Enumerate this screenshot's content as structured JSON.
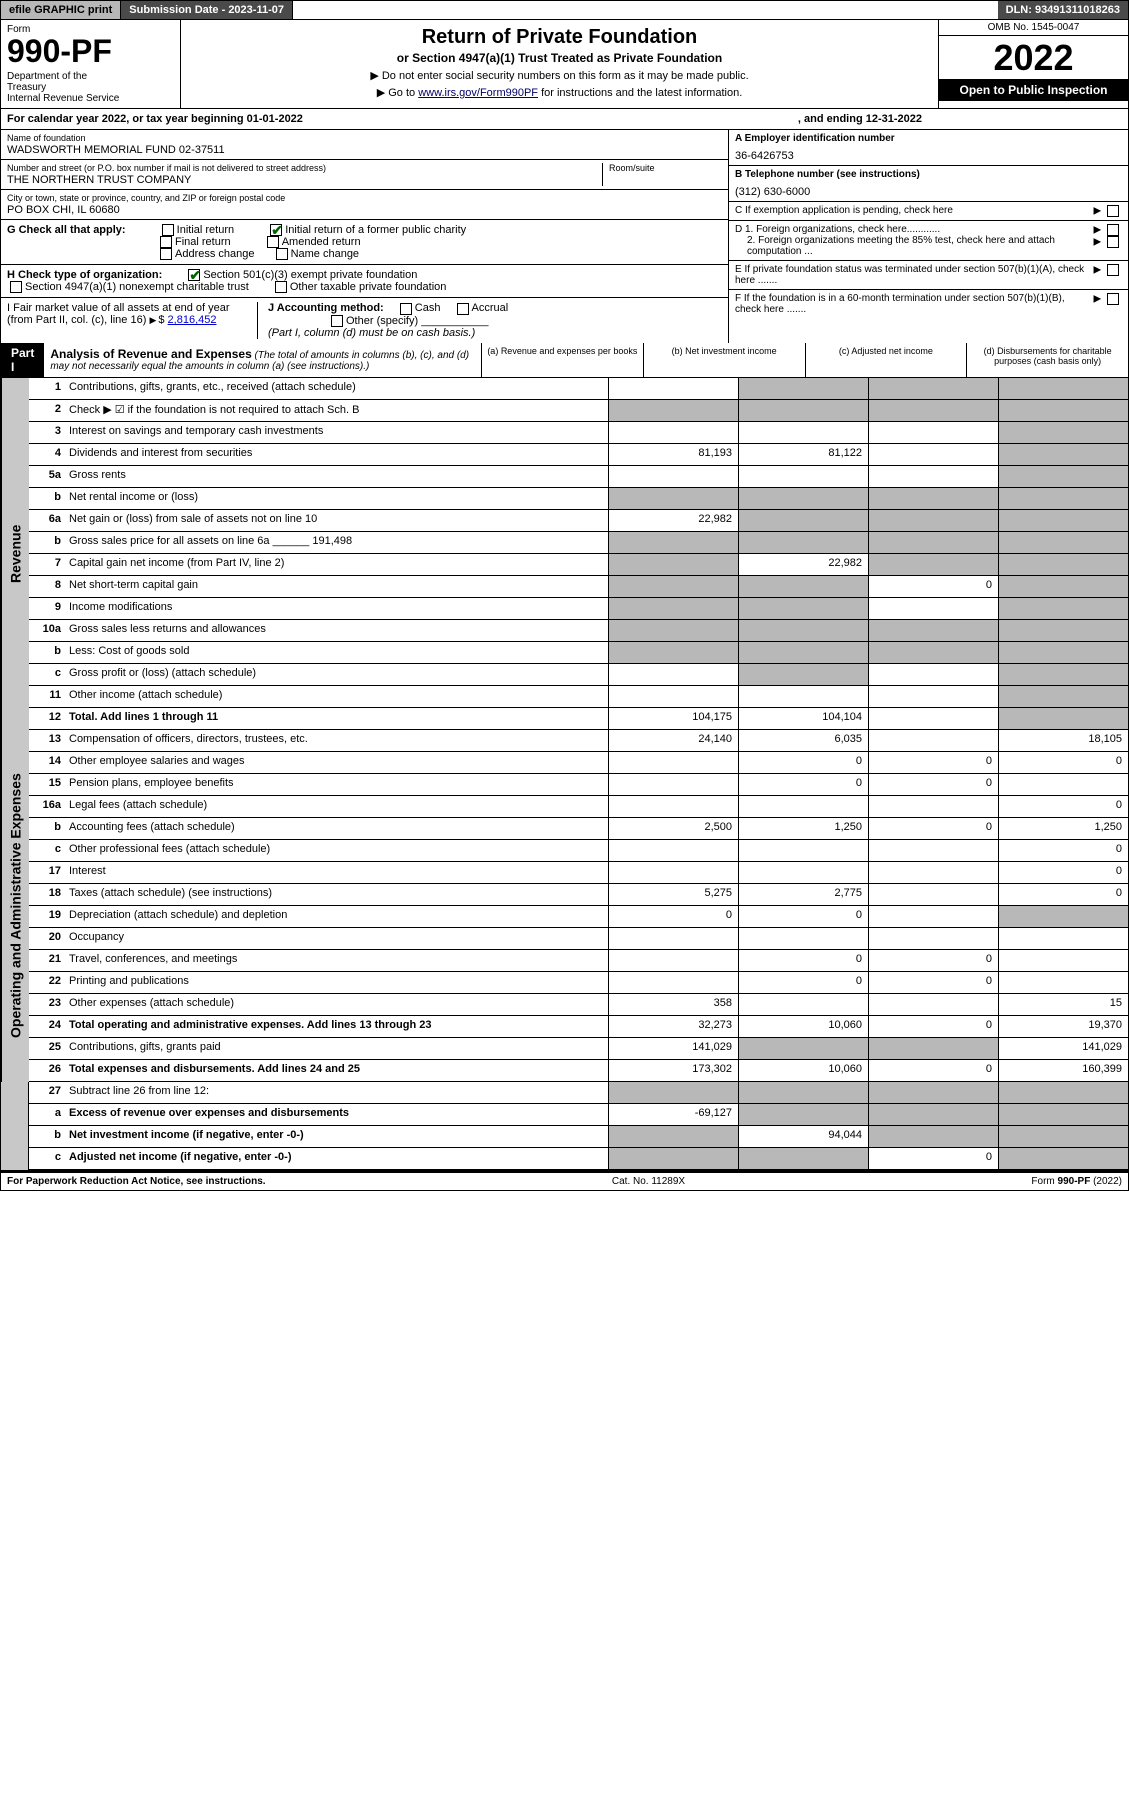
{
  "topbar": {
    "efile": "efile GRAPHIC print",
    "subdate_label": "Submission Date - 2023-11-07",
    "dln": "DLN: 93491311018263"
  },
  "header": {
    "form_label": "Form",
    "form_number": "990-PF",
    "dept": "Department of the Treasury\nInternal Revenue Service",
    "title": "Return of Private Foundation",
    "subtitle": "or Section 4947(a)(1) Trust Treated as Private Foundation",
    "note1": "▶ Do not enter social security numbers on this form as it may be made public.",
    "note2_pre": "▶ Go to ",
    "note2_link": "www.irs.gov/Form990PF",
    "note2_post": " for instructions and the latest information.",
    "omb": "OMB No. 1545-0047",
    "year": "2022",
    "open": "Open to Public Inspection"
  },
  "calyear": {
    "text1": "For calendar year 2022, or tax year beginning 01-01-2022",
    "text2": ", and ending 12-31-2022"
  },
  "left": {
    "name_label": "Name of foundation",
    "name": "WADSWORTH MEMORIAL FUND 02-37511",
    "addr_label": "Number and street (or P.O. box number if mail is not delivered to street address)",
    "addr": "THE NORTHERN TRUST COMPANY",
    "room_label": "Room/suite",
    "city_label": "City or town, state or province, country, and ZIP or foreign postal code",
    "city": "PO BOX CHI, IL  60680"
  },
  "right": {
    "a_label": "A Employer identification number",
    "a_value": "36-6426753",
    "b_label": "B Telephone number (see instructions)",
    "b_value": "(312) 630-6000",
    "c_label": "C If exemption application is pending, check here",
    "d1": "D 1. Foreign organizations, check here............",
    "d2": "2. Foreign organizations meeting the 85% test, check here and attach computation ...",
    "e": "E If private foundation status was terminated under section 507(b)(1)(A), check here .......",
    "f": "F If the foundation is in a 60-month termination under section 507(b)(1)(B), check here ......."
  },
  "g": {
    "label": "G Check all that apply:",
    "initial": "Initial return",
    "initial_former": "Initial return of a former public charity",
    "final": "Final return",
    "amended": "Amended return",
    "addr_change": "Address change",
    "name_change": "Name change"
  },
  "h": {
    "label": "H Check type of organization:",
    "c3": "Section 501(c)(3) exempt private foundation",
    "trust": "Section 4947(a)(1) nonexempt charitable trust",
    "other_taxable": "Other taxable private foundation"
  },
  "i": {
    "label": "I Fair market value of all assets at end of year (from Part II, col. (c), line 16)",
    "value": "2,816,452"
  },
  "j": {
    "label": "J Accounting method:",
    "cash": "Cash",
    "accrual": "Accrual",
    "other": "Other (specify)",
    "note": "(Part I, column (d) must be on cash basis.)"
  },
  "part1": {
    "label": "Part I",
    "title": "Analysis of Revenue and Expenses",
    "subtitle": "(The total of amounts in columns (b), (c), and (d) may not necessarily equal the amounts in column (a) (see instructions).)",
    "col_a": "(a) Revenue and expenses per books",
    "col_b": "(b) Net investment income",
    "col_c": "(c) Adjusted net income",
    "col_d": "(d) Disbursements for charitable purposes (cash basis only)"
  },
  "revenue_label": "Revenue",
  "expenses_label": "Operating and Administrative Expenses",
  "rows": [
    {
      "n": "1",
      "l": "Contributions, gifts, grants, etc., received (attach schedule)",
      "a": "",
      "b": "",
      "c": "",
      "d": "",
      "sa": false,
      "sb": true,
      "sc": true,
      "sd": true
    },
    {
      "n": "2",
      "l": "Check ▶ ☑ if the foundation is not required to attach Sch. B",
      "a": "",
      "b": "",
      "c": "",
      "d": "",
      "sa": true,
      "sb": true,
      "sc": true,
      "sd": true
    },
    {
      "n": "3",
      "l": "Interest on savings and temporary cash investments",
      "a": "",
      "b": "",
      "c": "",
      "d": "",
      "sa": false,
      "sb": false,
      "sc": false,
      "sd": true
    },
    {
      "n": "4",
      "l": "Dividends and interest from securities",
      "a": "81,193",
      "b": "81,122",
      "c": "",
      "d": "",
      "sa": false,
      "sb": false,
      "sc": false,
      "sd": true
    },
    {
      "n": "5a",
      "l": "Gross rents",
      "a": "",
      "b": "",
      "c": "",
      "d": "",
      "sa": false,
      "sb": false,
      "sc": false,
      "sd": true
    },
    {
      "n": "b",
      "l": "Net rental income or (loss)",
      "a": "",
      "b": "",
      "c": "",
      "d": "",
      "sa": true,
      "sb": true,
      "sc": true,
      "sd": true
    },
    {
      "n": "6a",
      "l": "Net gain or (loss) from sale of assets not on line 10",
      "a": "22,982",
      "b": "",
      "c": "",
      "d": "",
      "sa": false,
      "sb": true,
      "sc": true,
      "sd": true
    },
    {
      "n": "b",
      "l": "Gross sales price for all assets on line 6a ______ 191,498",
      "a": "",
      "b": "",
      "c": "",
      "d": "",
      "sa": true,
      "sb": true,
      "sc": true,
      "sd": true
    },
    {
      "n": "7",
      "l": "Capital gain net income (from Part IV, line 2)",
      "a": "",
      "b": "22,982",
      "c": "",
      "d": "",
      "sa": true,
      "sb": false,
      "sc": true,
      "sd": true
    },
    {
      "n": "8",
      "l": "Net short-term capital gain",
      "a": "",
      "b": "",
      "c": "0",
      "d": "",
      "sa": true,
      "sb": true,
      "sc": false,
      "sd": true
    },
    {
      "n": "9",
      "l": "Income modifications",
      "a": "",
      "b": "",
      "c": "",
      "d": "",
      "sa": true,
      "sb": true,
      "sc": false,
      "sd": true
    },
    {
      "n": "10a",
      "l": "Gross sales less returns and allowances",
      "a": "",
      "b": "",
      "c": "",
      "d": "",
      "sa": true,
      "sb": true,
      "sc": true,
      "sd": true
    },
    {
      "n": "b",
      "l": "Less: Cost of goods sold",
      "a": "",
      "b": "",
      "c": "",
      "d": "",
      "sa": true,
      "sb": true,
      "sc": true,
      "sd": true
    },
    {
      "n": "c",
      "l": "Gross profit or (loss) (attach schedule)",
      "a": "",
      "b": "",
      "c": "",
      "d": "",
      "sa": false,
      "sb": true,
      "sc": false,
      "sd": true
    },
    {
      "n": "11",
      "l": "Other income (attach schedule)",
      "a": "",
      "b": "",
      "c": "",
      "d": "",
      "sa": false,
      "sb": false,
      "sc": false,
      "sd": true
    },
    {
      "n": "12",
      "l": "Total. Add lines 1 through 11",
      "a": "104,175",
      "b": "104,104",
      "c": "",
      "d": "",
      "sa": false,
      "sb": false,
      "sc": false,
      "sd": true,
      "bold": true
    }
  ],
  "exp_rows": [
    {
      "n": "13",
      "l": "Compensation of officers, directors, trustees, etc.",
      "a": "24,140",
      "b": "6,035",
      "c": "",
      "d": "18,105"
    },
    {
      "n": "14",
      "l": "Other employee salaries and wages",
      "a": "",
      "b": "0",
      "c": "0",
      "d": "0"
    },
    {
      "n": "15",
      "l": "Pension plans, employee benefits",
      "a": "",
      "b": "0",
      "c": "0",
      "d": ""
    },
    {
      "n": "16a",
      "l": "Legal fees (attach schedule)",
      "a": "",
      "b": "",
      "c": "",
      "d": "0"
    },
    {
      "n": "b",
      "l": "Accounting fees (attach schedule)",
      "a": "2,500",
      "b": "1,250",
      "c": "0",
      "d": "1,250"
    },
    {
      "n": "c",
      "l": "Other professional fees (attach schedule)",
      "a": "",
      "b": "",
      "c": "",
      "d": "0"
    },
    {
      "n": "17",
      "l": "Interest",
      "a": "",
      "b": "",
      "c": "",
      "d": "0"
    },
    {
      "n": "18",
      "l": "Taxes (attach schedule) (see instructions)",
      "a": "5,275",
      "b": "2,775",
      "c": "",
      "d": "0"
    },
    {
      "n": "19",
      "l": "Depreciation (attach schedule) and depletion",
      "a": "0",
      "b": "0",
      "c": "",
      "d": "",
      "sd": true
    },
    {
      "n": "20",
      "l": "Occupancy",
      "a": "",
      "b": "",
      "c": "",
      "d": ""
    },
    {
      "n": "21",
      "l": "Travel, conferences, and meetings",
      "a": "",
      "b": "0",
      "c": "0",
      "d": ""
    },
    {
      "n": "22",
      "l": "Printing and publications",
      "a": "",
      "b": "0",
      "c": "0",
      "d": ""
    },
    {
      "n": "23",
      "l": "Other expenses (attach schedule)",
      "a": "358",
      "b": "",
      "c": "",
      "d": "15"
    },
    {
      "n": "24",
      "l": "Total operating and administrative expenses. Add lines 13 through 23",
      "a": "32,273",
      "b": "10,060",
      "c": "0",
      "d": "19,370",
      "bold": true
    },
    {
      "n": "25",
      "l": "Contributions, gifts, grants paid",
      "a": "141,029",
      "b": "",
      "c": "",
      "d": "141,029",
      "sb": true,
      "sc": true
    },
    {
      "n": "26",
      "l": "Total expenses and disbursements. Add lines 24 and 25",
      "a": "173,302",
      "b": "10,060",
      "c": "0",
      "d": "160,399",
      "bold": true
    }
  ],
  "bottom_rows": [
    {
      "n": "27",
      "l": "Subtract line 26 from line 12:",
      "a": "",
      "b": "",
      "c": "",
      "d": "",
      "sa": true,
      "sb": true,
      "sc": true,
      "sd": true
    },
    {
      "n": "a",
      "l": "Excess of revenue over expenses and disbursements",
      "a": "-69,127",
      "b": "",
      "c": "",
      "d": "",
      "bold": true,
      "sb": true,
      "sc": true,
      "sd": true
    },
    {
      "n": "b",
      "l": "Net investment income (if negative, enter -0-)",
      "a": "",
      "b": "94,044",
      "c": "",
      "d": "",
      "bold": true,
      "sa": true,
      "sc": true,
      "sd": true
    },
    {
      "n": "c",
      "l": "Adjusted net income (if negative, enter -0-)",
      "a": "",
      "b": "",
      "c": "0",
      "d": "",
      "bold": true,
      "sa": true,
      "sb": true,
      "sd": true
    }
  ],
  "footer": {
    "left": "For Paperwork Reduction Act Notice, see instructions.",
    "mid": "Cat. No. 11289X",
    "right": "Form 990-PF (2022)"
  }
}
